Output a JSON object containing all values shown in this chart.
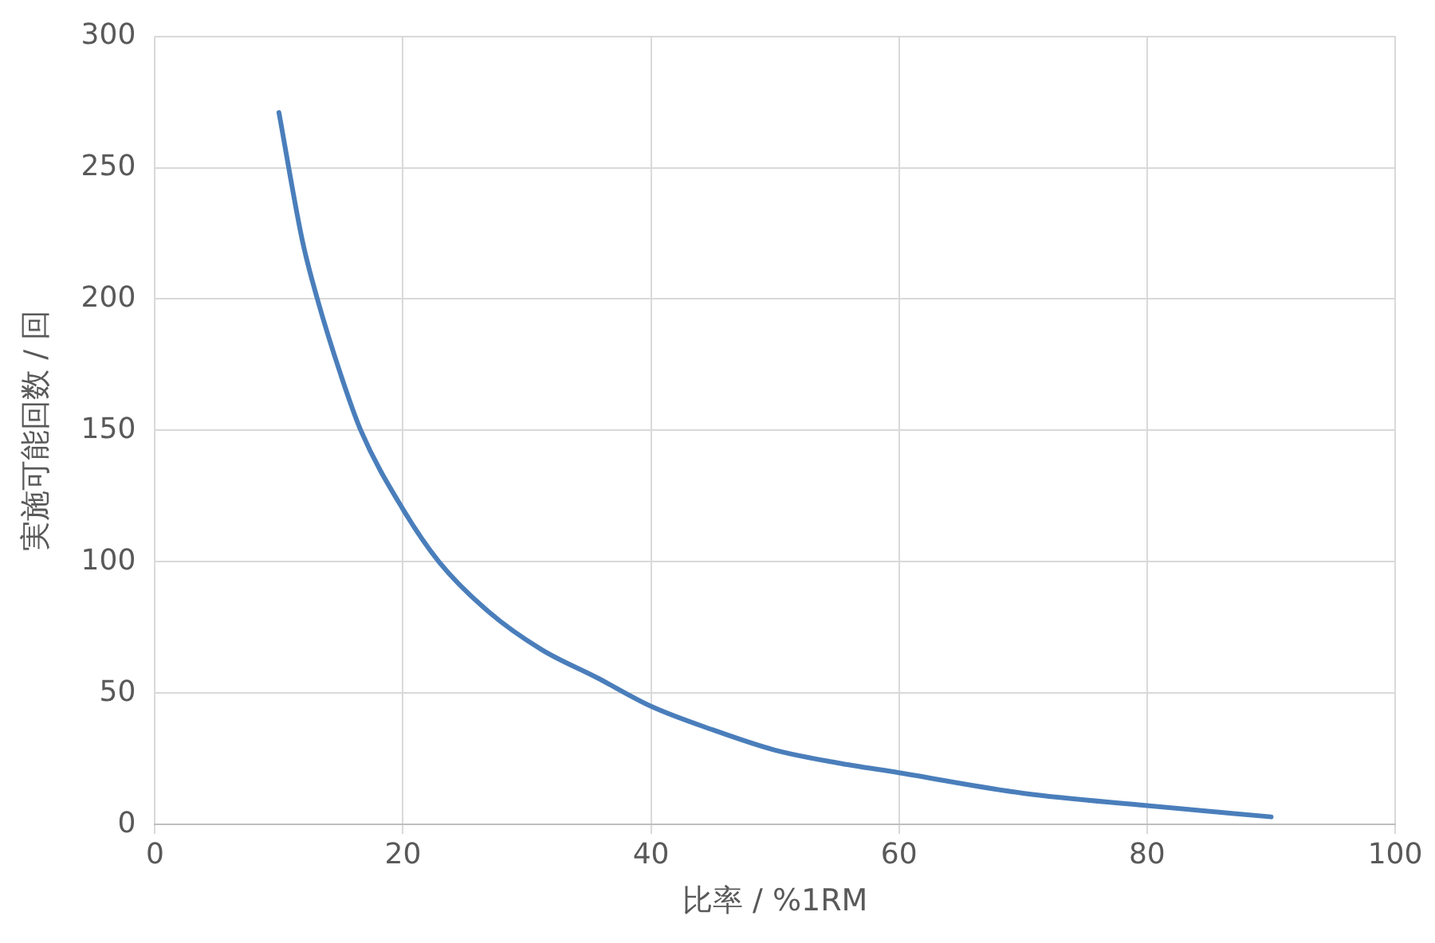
{
  "chart_data": {
    "type": "line",
    "xlabel": "比率 / %1RM",
    "ylabel": "実施可能回数 / 回",
    "x": [
      10,
      11.9,
      13.1,
      15,
      16.6,
      20,
      22.9,
      26.9,
      31.2,
      35.6,
      40,
      45,
      50,
      55,
      60,
      70,
      80,
      90
    ],
    "series": [
      {
        "color": "#4a7ebb",
        "values": [
          271,
          222,
          200,
          171,
          150,
          120,
          100,
          81,
          66.5,
          56,
          45,
          36,
          28.3,
          23.5,
          19.7,
          11.9,
          7.2,
          2.9
        ]
      }
    ],
    "xlim": [
      0,
      100
    ],
    "xticks": [
      0,
      20,
      40,
      60,
      80,
      100
    ],
    "ylim": [
      0,
      300
    ],
    "yticks": [
      0,
      50,
      100,
      150,
      200,
      250,
      300
    ],
    "grid": true,
    "legend": false,
    "marker": "none",
    "line_style": "solid"
  }
}
